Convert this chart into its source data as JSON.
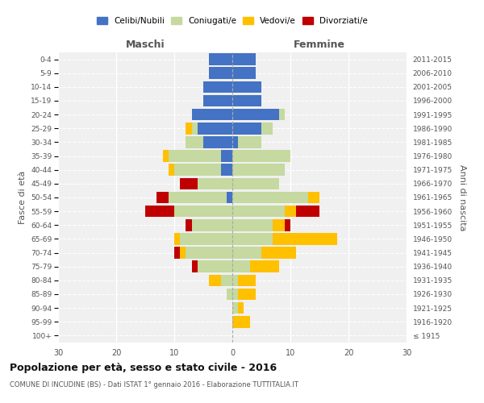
{
  "age_groups": [
    "100+",
    "95-99",
    "90-94",
    "85-89",
    "80-84",
    "75-79",
    "70-74",
    "65-69",
    "60-64",
    "55-59",
    "50-54",
    "45-49",
    "40-44",
    "35-39",
    "30-34",
    "25-29",
    "20-24",
    "15-19",
    "10-14",
    "5-9",
    "0-4"
  ],
  "birth_years": [
    "≤ 1915",
    "1916-1920",
    "1921-1925",
    "1926-1930",
    "1931-1935",
    "1936-1940",
    "1941-1945",
    "1946-1950",
    "1951-1955",
    "1956-1960",
    "1961-1965",
    "1966-1970",
    "1971-1975",
    "1976-1980",
    "1981-1985",
    "1986-1990",
    "1991-1995",
    "1996-2000",
    "2001-2005",
    "2006-2010",
    "2011-2015"
  ],
  "male": {
    "celibi": [
      0,
      0,
      0,
      0,
      0,
      0,
      0,
      0,
      0,
      0,
      1,
      0,
      2,
      2,
      5,
      6,
      7,
      5,
      5,
      4,
      4
    ],
    "coniugati": [
      0,
      0,
      0,
      1,
      2,
      6,
      8,
      9,
      7,
      10,
      10,
      6,
      8,
      9,
      3,
      1,
      0,
      0,
      0,
      0,
      0
    ],
    "vedovi": [
      0,
      0,
      0,
      0,
      2,
      0,
      1,
      1,
      0,
      0,
      0,
      0,
      1,
      1,
      0,
      1,
      0,
      0,
      0,
      0,
      0
    ],
    "divorziati": [
      0,
      0,
      0,
      0,
      0,
      1,
      1,
      0,
      1,
      5,
      2,
      3,
      0,
      0,
      0,
      0,
      0,
      0,
      0,
      0,
      0
    ]
  },
  "female": {
    "nubili": [
      0,
      0,
      0,
      0,
      0,
      0,
      0,
      0,
      0,
      0,
      0,
      0,
      0,
      0,
      1,
      5,
      8,
      5,
      5,
      4,
      4
    ],
    "coniugate": [
      0,
      0,
      1,
      1,
      1,
      3,
      5,
      7,
      7,
      9,
      13,
      8,
      9,
      10,
      4,
      2,
      1,
      0,
      0,
      0,
      0
    ],
    "vedove": [
      0,
      3,
      1,
      3,
      3,
      5,
      6,
      11,
      2,
      2,
      2,
      0,
      0,
      0,
      0,
      0,
      0,
      0,
      0,
      0,
      0
    ],
    "divorziate": [
      0,
      0,
      0,
      0,
      0,
      0,
      0,
      0,
      1,
      4,
      0,
      0,
      0,
      0,
      0,
      0,
      0,
      0,
      0,
      0,
      0
    ]
  },
  "colors": {
    "celibi": "#4472c4",
    "coniugati": "#c5d9a0",
    "vedovi": "#ffc000",
    "divorziati": "#c00000"
  },
  "xlim": 30,
  "title": "Popolazione per età, sesso e stato civile - 2016",
  "subtitle": "COMUNE DI INCUDINE (BS) - Dati ISTAT 1° gennaio 2016 - Elaborazione TUTTITALIA.IT",
  "ylabel_left": "Fasce di età",
  "ylabel_right": "Anni di nascita",
  "legend_labels": [
    "Celibi/Nubili",
    "Coniugati/e",
    "Vedovi/e",
    "Divorziati/e"
  ],
  "background_color": "#f0f0f0"
}
